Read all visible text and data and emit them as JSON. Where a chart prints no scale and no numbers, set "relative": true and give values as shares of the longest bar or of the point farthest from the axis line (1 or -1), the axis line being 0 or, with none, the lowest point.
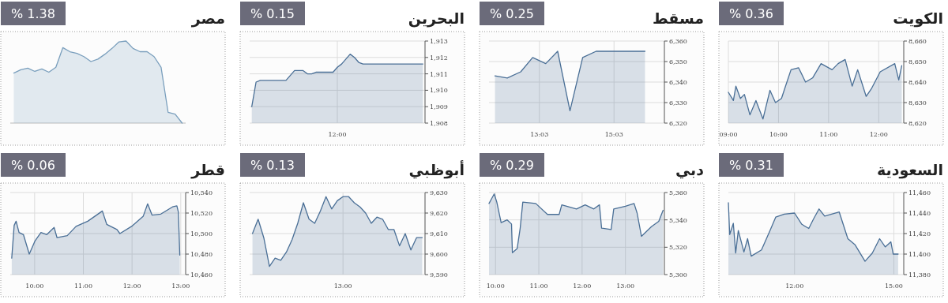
{
  "chart_data": [
    {
      "type": "area",
      "title": "الكويت",
      "annotations": [
        "% 0.36"
      ],
      "grid": true,
      "x": [
        9.0,
        9.1,
        9.15,
        9.24,
        9.32,
        9.43,
        9.55,
        9.69,
        9.83,
        9.94,
        10.06,
        10.14,
        10.25,
        10.4,
        10.54,
        10.68,
        10.85,
        11.07,
        11.19,
        11.33,
        11.47,
        11.58,
        11.75,
        11.86,
        12.03,
        12.32,
        12.4,
        12.46
      ],
      "series": [
        {
          "color": "#4a6f96",
          "values": [
            8635,
            8631,
            8638,
            8632,
            8634,
            8624,
            8631,
            8622,
            8636,
            8630,
            8632,
            8638,
            8646,
            8647,
            8640,
            8642,
            8649,
            8646,
            8649,
            8651,
            8638,
            8646,
            8633,
            8637,
            8645,
            8649,
            8641,
            8648
          ]
        }
      ],
      "xlim": [
        9,
        12.5
      ],
      "ylim": [
        8620,
        8660
      ],
      "xticks": [
        {
          "value": 9,
          "label": "09:00"
        },
        {
          "value": 10,
          "label": "10:00"
        },
        {
          "value": 11,
          "label": "11:00"
        },
        {
          "value": 12,
          "label": "12:00"
        }
      ],
      "yticks": [
        {
          "value": 8620,
          "label": "8,620"
        },
        {
          "value": 8630,
          "label": "8,630"
        },
        {
          "value": 8640,
          "label": "8,640"
        },
        {
          "value": 8650,
          "label": "8,650"
        },
        {
          "value": 8660,
          "label": "8,660"
        }
      ]
    },
    {
      "type": "area",
      "title": "مسقط",
      "annotations": [
        "% 0.25"
      ],
      "grid": true,
      "x": [
        11.86,
        12.19,
        12.55,
        12.87,
        13.22,
        13.54,
        13.87,
        14.21,
        14.57,
        15.88
      ],
      "series": [
        {
          "color": "#4a6f96",
          "values": [
            6343,
            6342,
            6345,
            6352,
            6349,
            6355,
            6326,
            6352,
            6355,
            6355
          ]
        }
      ],
      "xlim": [
        11.7,
        16.4
      ],
      "ylim": [
        6320,
        6360
      ],
      "xticks": [
        {
          "value": 13.05,
          "label": "13:03"
        },
        {
          "value": 15.05,
          "label": "15:03"
        }
      ],
      "yticks": [
        {
          "value": 6320,
          "label": "6,320"
        },
        {
          "value": 6330,
          "label": "6,330"
        },
        {
          "value": 6340,
          "label": "6,340"
        },
        {
          "value": 6350,
          "label": "6,350"
        },
        {
          "value": 6360,
          "label": "6,360"
        }
      ]
    },
    {
      "type": "area",
      "title": "البحرين",
      "annotations": [
        "% 0.15"
      ],
      "grid": true,
      "categories": [
        null,
        null,
        null,
        null,
        null,
        null,
        null,
        null,
        null,
        null,
        null,
        null,
        null,
        null,
        null,
        null,
        null,
        null,
        null,
        null,
        "12:00",
        null,
        null,
        null,
        null,
        null,
        null,
        null,
        null,
        null,
        null,
        null,
        null,
        null,
        null,
        null,
        null,
        null,
        null,
        null,
        null
      ],
      "series": [
        {
          "color": "#4a6f96",
          "values": [
            1909.0,
            1910.5,
            1910.6,
            1910.6,
            1910.6,
            1910.6,
            1910.6,
            1910.6,
            1910.6,
            1910.9,
            1911.2,
            1911.2,
            1911.2,
            1911.0,
            1911.0,
            1911.1,
            1911.1,
            1911.1,
            1911.1,
            1911.1,
            1911.4,
            1911.6,
            1911.9,
            1912.2,
            1912.0,
            1911.7,
            1911.6,
            1911.6,
            1911.6,
            1911.6,
            1911.6,
            1911.6,
            1911.6,
            1911.6,
            1911.6,
            1911.6,
            1911.6,
            1911.6,
            1911.6,
            1911.6,
            1911.6
          ]
        }
      ],
      "ylim": [
        1908,
        1913
      ],
      "yticks": [
        {
          "value": 1908,
          "label": "1,908"
        },
        {
          "value": 1909,
          "label": "1,909"
        },
        {
          "value": 1910,
          "label": "1,910"
        },
        {
          "value": 1911,
          "label": "1,911"
        },
        {
          "value": 1912,
          "label": "1,912"
        },
        {
          "value": 1913,
          "label": "1,913"
        }
      ]
    },
    {
      "type": "area",
      "title": "مصر",
      "annotations": [
        "% 1.38"
      ],
      "relative": true,
      "categories": [
        null,
        null,
        null,
        null,
        null,
        null,
        null,
        null,
        null,
        null,
        null,
        null,
        null,
        null,
        null,
        null,
        null,
        null,
        null,
        null,
        null,
        null,
        null,
        null,
        null
      ],
      "series": [
        {
          "color": "#7a9fbd",
          "values": [
            0.61,
            0.65,
            0.67,
            0.63,
            0.66,
            0.62,
            0.68,
            0.92,
            0.87,
            0.85,
            0.81,
            0.75,
            0.78,
            0.84,
            0.91,
            0.99,
            1.0,
            0.91,
            0.87,
            0.87,
            0.81,
            0.68,
            0.13,
            0.11,
            0
          ]
        }
      ]
    },
    {
      "type": "area",
      "title": "السعودية",
      "annotations": [
        "% 0.31"
      ],
      "grid": true,
      "x": [
        10.0,
        10.04,
        10.15,
        10.22,
        10.3,
        10.47,
        10.58,
        10.69,
        11.0,
        11.26,
        11.43,
        11.69,
        12.0,
        12.22,
        12.43,
        12.57,
        12.74,
        12.91,
        13.35,
        13.61,
        13.83,
        14.13,
        14.35,
        14.57,
        14.74,
        14.91,
        14.98,
        15.13
      ],
      "series": [
        {
          "color": "#4a6f96",
          "values": [
            11450,
            11419,
            11430,
            11401,
            11423,
            11402,
            11415,
            11398,
            11404,
            11423,
            11436,
            11439,
            11440,
            11429,
            11425,
            11434,
            11444,
            11437,
            11441,
            11415,
            11409,
            11393,
            11401,
            11415,
            11407,
            11412,
            11400,
            11400
          ]
        }
      ],
      "xlim": [
        10,
        15.3
      ],
      "ylim": [
        11380,
        11460
      ],
      "xticks": [
        {
          "value": 12,
          "label": "12:00"
        },
        {
          "value": 15,
          "label": "15:00"
        }
      ],
      "yticks": [
        {
          "value": 11380,
          "label": "11,380"
        },
        {
          "value": 11400,
          "label": "11,400"
        },
        {
          "value": 11420,
          "label": "11,420"
        },
        {
          "value": 11440,
          "label": "11,440"
        },
        {
          "value": 11460,
          "label": "11,460"
        }
      ]
    },
    {
      "type": "area",
      "title": "دبي",
      "annotations": [
        "% 0.29"
      ],
      "grid": true,
      "x": [
        9.85,
        9.97,
        10.03,
        10.13,
        10.27,
        10.37,
        10.39,
        10.5,
        10.57,
        10.63,
        10.93,
        11.2,
        11.47,
        11.53,
        11.87,
        12.07,
        12.27,
        12.4,
        12.45,
        12.67,
        12.73,
        13.0,
        13.2,
        13.27,
        13.37,
        13.6,
        13.77,
        13.87
      ],
      "series": [
        {
          "color": "#4a6f96",
          "values": [
            5352,
            5359,
            5353,
            5338,
            5340,
            5337,
            5316,
            5319,
            5334,
            5353,
            5352,
            5344,
            5344,
            5351,
            5348,
            5351,
            5348,
            5351,
            5334,
            5333,
            5348,
            5350,
            5352,
            5345,
            5328,
            5335,
            5339,
            5347
          ]
        }
      ],
      "xlim": [
        9.85,
        13.9
      ],
      "ylim": [
        5300,
        5360
      ],
      "xticks": [
        {
          "value": 10,
          "label": "10:00"
        },
        {
          "value": 11,
          "label": "11:00"
        },
        {
          "value": 12,
          "label": "12:00"
        },
        {
          "value": 13,
          "label": "13:00"
        }
      ],
      "yticks": [
        {
          "value": 5300,
          "label": "5,300"
        },
        {
          "value": 5320,
          "label": "5,320"
        },
        {
          "value": 5340,
          "label": "5,340"
        },
        {
          "value": 5360,
          "label": "5,360"
        }
      ]
    },
    {
      "type": "area",
      "title": "أبوظبي",
      "annotations": [
        "% 0.13"
      ],
      "grid": true,
      "categories": [
        null,
        null,
        null,
        null,
        null,
        null,
        null,
        null,
        null,
        null,
        null,
        null,
        null,
        null,
        null,
        null,
        "13:00",
        null,
        null,
        null,
        null,
        null,
        null,
        null,
        null,
        null,
        null,
        null,
        null,
        null,
        null
      ],
      "series": [
        {
          "color": "#4a6f96",
          "values": [
            9610,
            9617,
            9608,
            9594,
            9598,
            9597,
            9601,
            9607,
            9615,
            9625,
            9617,
            9615,
            9621,
            9628,
            9622,
            9626,
            9628,
            9628,
            9625,
            9623,
            9620,
            9615,
            9618,
            9617,
            9612,
            9612,
            9604,
            9610,
            9602,
            9608,
            9608
          ]
        }
      ],
      "ylim": [
        9590,
        9630
      ],
      "yticks": [
        {
          "value": 9590,
          "label": "9,590"
        },
        {
          "value": 9600,
          "label": "9,600"
        },
        {
          "value": 9610,
          "label": "9,610"
        },
        {
          "value": 9620,
          "label": "9,620"
        },
        {
          "value": 9630,
          "label": "9,630"
        }
      ]
    },
    {
      "type": "area",
      "title": "قطر",
      "annotations": [
        "% 0.06"
      ],
      "grid": true,
      "x": [
        9.53,
        9.58,
        9.62,
        9.68,
        9.77,
        9.89,
        10.01,
        10.13,
        10.25,
        10.4,
        10.46,
        10.67,
        10.85,
        11.09,
        11.27,
        11.39,
        11.48,
        11.69,
        11.75,
        11.99,
        12.23,
        12.32,
        12.41,
        12.59,
        12.83,
        12.92,
        12.95,
        12.98
      ],
      "series": [
        {
          "color": "#4a6f96",
          "values": [
            10476,
            10508,
            10512,
            10501,
            10499,
            10480,
            10493,
            10501,
            10499,
            10506,
            10496,
            10498,
            10507,
            10512,
            10518,
            10522,
            10509,
            10504,
            10500,
            10507,
            10517,
            10529,
            10518,
            10519,
            10526,
            10527,
            10521,
            10479
          ]
        }
      ],
      "xlim": [
        9.5,
        13.1
      ],
      "ylim": [
        10460,
        10540
      ],
      "xticks": [
        {
          "value": 10,
          "label": "10:00"
        },
        {
          "value": 11,
          "label": "11:00"
        },
        {
          "value": 12,
          "label": "12:00"
        },
        {
          "value": 13,
          "label": "13:00"
        }
      ],
      "yticks": [
        {
          "value": 10460,
          "label": "10,460"
        },
        {
          "value": 10480,
          "label": "10,480"
        },
        {
          "value": 10500,
          "label": "10,500"
        },
        {
          "value": 10520,
          "label": "10,520"
        },
        {
          "value": 10540,
          "label": "10,540"
        }
      ]
    }
  ]
}
